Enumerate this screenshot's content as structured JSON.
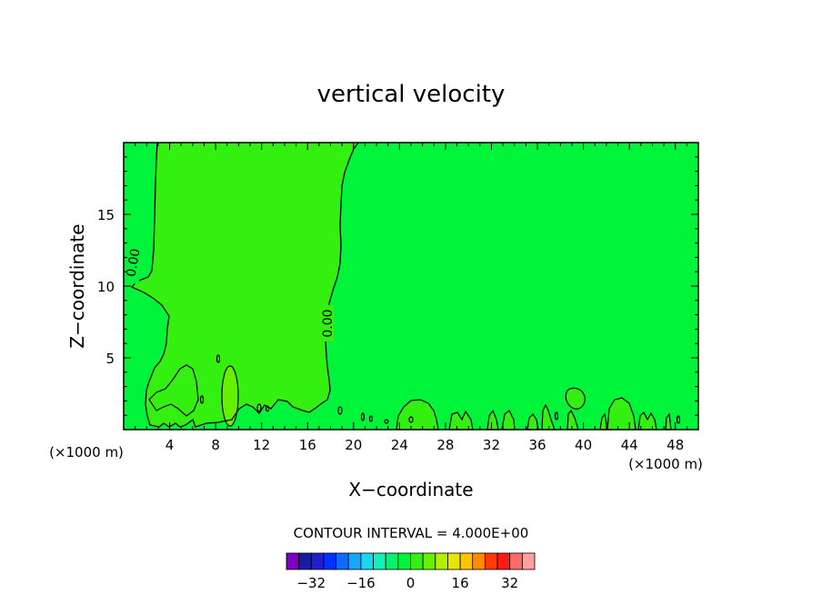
{
  "chart_data": {
    "type": "heatmap",
    "title": "vertical velocity",
    "xlabel": "X−coordinate",
    "ylabel": "Z−coordinate",
    "x_unit_left": "(×1000 m)",
    "x_unit_right": "(×1000 m)",
    "xlim": [
      0,
      50
    ],
    "ylim": [
      0,
      20
    ],
    "x_ticks": [
      "4",
      "8",
      "12",
      "16",
      "20",
      "24",
      "28",
      "32",
      "36",
      "40",
      "44",
      "48"
    ],
    "y_ticks": [
      "5",
      "10",
      "15"
    ],
    "contour_label": "0.00",
    "contour_interval_text": "CONTOUR INTERVAL = 4.000E+00",
    "colorbar": {
      "ticks": [
        "−32",
        "−16",
        "0",
        "16",
        "32"
      ],
      "levels": [
        -36,
        -32,
        -28,
        -24,
        -20,
        -16,
        -12,
        -8,
        -4,
        0,
        4,
        8,
        12,
        16,
        20,
        24,
        28,
        32,
        36
      ],
      "colors": [
        "#7b00c0",
        "#1a1aa6",
        "#1f1fd0",
        "#0033ff",
        "#0b6cff",
        "#15a6ff",
        "#18d8f0",
        "#12f0b8",
        "#08f070",
        "#00f53a",
        "#33f010",
        "#66f000",
        "#b0f000",
        "#e6e600",
        "#ffc400",
        "#ff8c00",
        "#ff3a00",
        "#ff1a1a",
        "#ff6a6a",
        "#ff9f9f"
      ]
    },
    "fields": {
      "background_value": 0,
      "updraft_column": {
        "x_range": [
          3,
          19
        ],
        "z_range": [
          0,
          20
        ],
        "value_range": [
          0,
          4
        ]
      },
      "updraft_core": {
        "x": 9,
        "z": 2.5,
        "value_range": [
          4,
          8
        ]
      }
    },
    "colors": {
      "negative_region": "#00f53a",
      "positive_region": "#33f010",
      "core": "#66f000"
    }
  }
}
